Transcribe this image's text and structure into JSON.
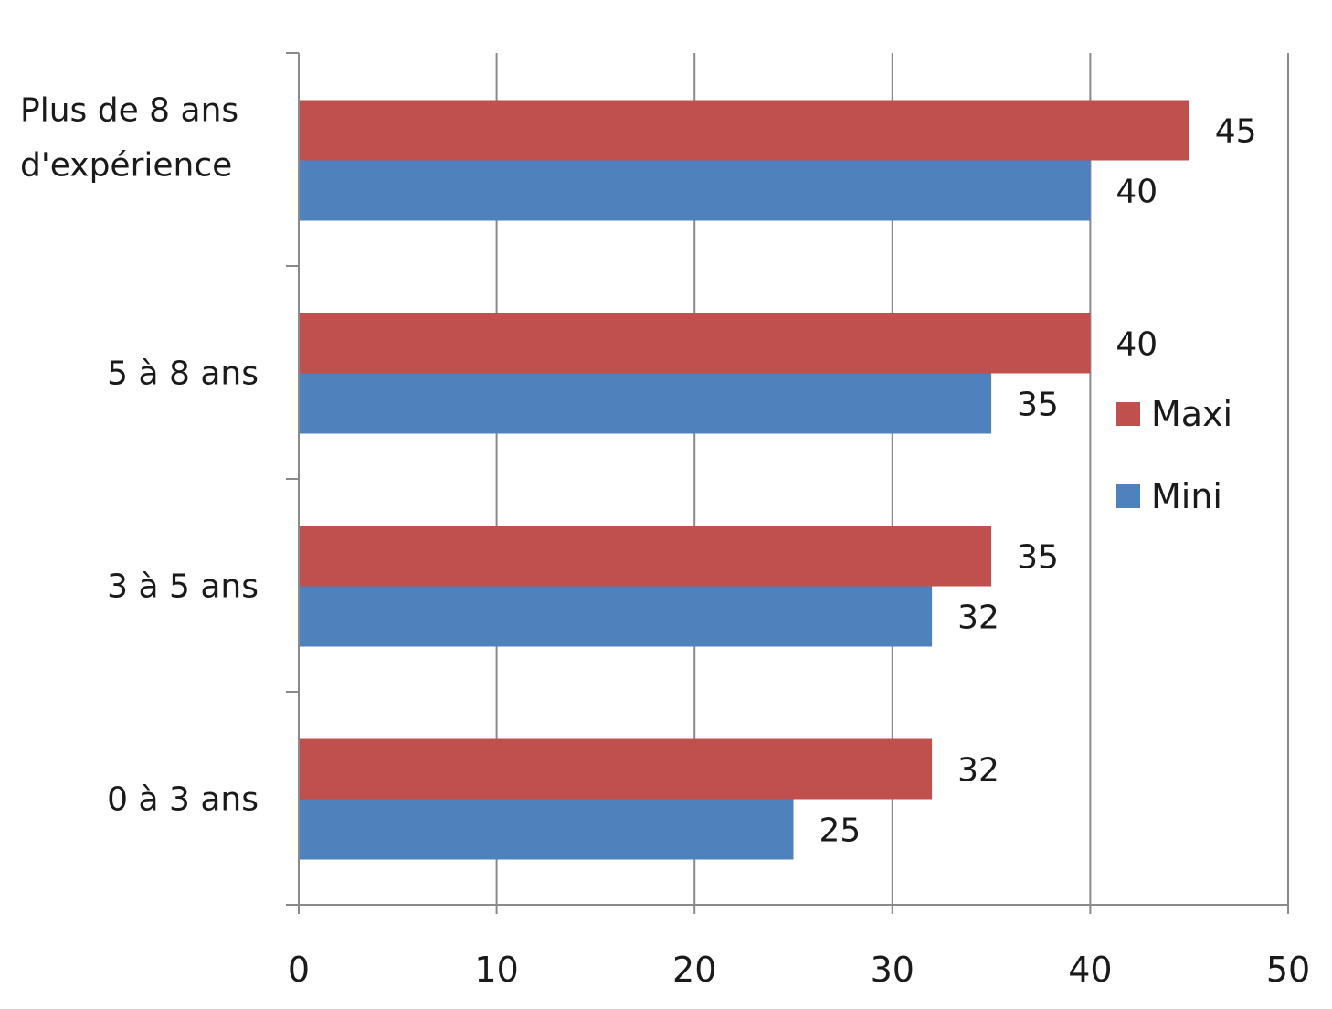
{
  "chart_data": {
    "type": "bar",
    "orientation": "horizontal",
    "title": "",
    "xlabel": "",
    "ylabel": "",
    "categories": [
      "Plus de 8 ans d'expérience",
      "5 à 8 ans",
      "3 à 5 ans",
      "0 à 3 ans"
    ],
    "series": [
      {
        "name": "Maxi",
        "color": "#C0504D",
        "values": [
          45,
          40,
          35,
          32
        ]
      },
      {
        "name": "Mini",
        "color": "#4F81BD",
        "values": [
          40,
          35,
          32,
          25
        ]
      }
    ],
    "xlim": [
      0,
      50
    ],
    "x_ticks": [
      0,
      10,
      20,
      30,
      40,
      50
    ],
    "grid": true,
    "legend_position": "right",
    "data_labels": true
  }
}
